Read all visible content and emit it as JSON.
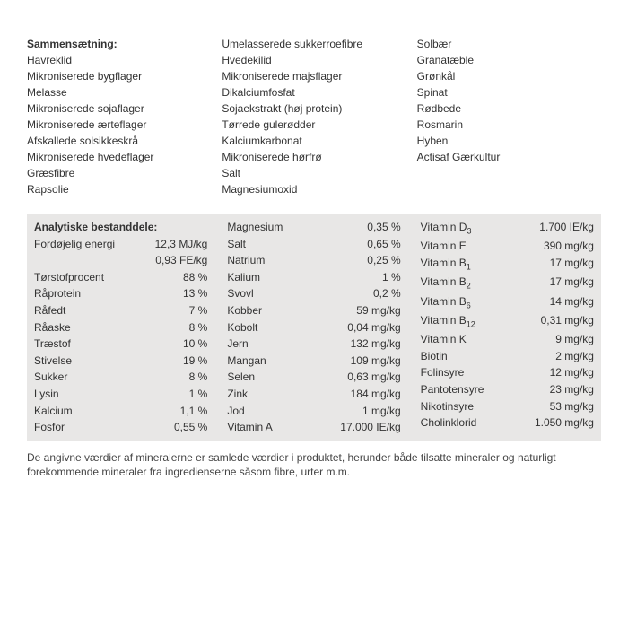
{
  "composition": {
    "heading": "Sammensætning:",
    "col1": [
      "Havreklid",
      "Mikroniserede bygflager",
      "Melasse",
      "Mikroniserede sojaflager",
      "Mikroniserede ærteflager",
      "Afskallede solsikkeskrå",
      "Mikroniserede hvedeflager",
      "Græsfibre",
      "Rapsolie"
    ],
    "col2": [
      "Umelasserede sukkerroefibre",
      "Hvedekilid",
      "Mikroniserede majsflager",
      "Dikalciumfosfat",
      "Sojaekstrakt (høj protein)",
      "Tørrede gulerødder",
      "Kalciumkarbonat",
      "Mikroniserede hørfrø",
      "Salt",
      "Magnesiumoxid"
    ],
    "col3": [
      "Solbær",
      "Granatæble",
      "Grønkål",
      "Spinat",
      "Rødbede",
      "Rosmarin",
      "Hyben",
      "Actisaf Gærkultur"
    ]
  },
  "analytic": {
    "heading": "Analytiske bestanddele:",
    "col1": [
      {
        "label": "Fordøjelig energi",
        "value": "12,3 MJ/kg"
      },
      {
        "label": "",
        "value": "0,93 FE/kg"
      },
      {
        "label": "Tørstofprocent",
        "value": "88 %"
      },
      {
        "label": "Råprotein",
        "value": "13 %"
      },
      {
        "label": "Råfedt",
        "value": "7 %"
      },
      {
        "label": "Råaske",
        "value": "8 %"
      },
      {
        "label": "Træstof",
        "value": "10 %"
      },
      {
        "label": "Stivelse",
        "value": "19 %"
      },
      {
        "label": "Sukker",
        "value": "8 %"
      },
      {
        "label": "Lysin",
        "value": "1 %"
      },
      {
        "label": "Kalcium",
        "value": "1,1 %"
      },
      {
        "label": "Fosfor",
        "value": "0,55 %"
      }
    ],
    "col2": [
      {
        "label": "Magnesium",
        "value": "0,35 %"
      },
      {
        "label": "Salt",
        "value": "0,65 %"
      },
      {
        "label": "Natrium",
        "value": "0,25 %"
      },
      {
        "label": "Kalium",
        "value": "1 %"
      },
      {
        "label": "Svovl",
        "value": "0,2 %"
      },
      {
        "label": "Kobber",
        "value": "59 mg/kg"
      },
      {
        "label": "Kobolt",
        "value": "0,04 mg/kg"
      },
      {
        "label": "Jern",
        "value": "132 mg/kg"
      },
      {
        "label": "Mangan",
        "value": "109 mg/kg"
      },
      {
        "label": "Selen",
        "value": "0,63 mg/kg"
      },
      {
        "label": "Zink",
        "value": "184 mg/kg"
      },
      {
        "label": "Jod",
        "value": "1 mg/kg"
      },
      {
        "label": "Vitamin A",
        "value": "17.000 IE/kg"
      }
    ],
    "col3": [
      {
        "label": "Vitamin D",
        "sub": "3",
        "value": "1.700 IE/kg"
      },
      {
        "label": "Vitamin E",
        "value": "390 mg/kg"
      },
      {
        "label": "Vitamin B",
        "sub": "1",
        "value": "17 mg/kg"
      },
      {
        "label": "Vitamin B",
        "sub": "2",
        "value": "17 mg/kg"
      },
      {
        "label": "Vitamin B",
        "sub": "6",
        "value": "14 mg/kg"
      },
      {
        "label": "Vitamin B",
        "sub": "12",
        "value": "0,31 mg/kg"
      },
      {
        "label": "Vitamin K",
        "value": "9 mg/kg"
      },
      {
        "label": "Biotin",
        "value": "2 mg/kg"
      },
      {
        "label": "Folinsyre",
        "value": "12 mg/kg"
      },
      {
        "label": "Pantotensyre",
        "value": "23 mg/kg"
      },
      {
        "label": "Nikotinsyre",
        "value": "53 mg/kg"
      },
      {
        "label": "Cholinklorid",
        "value": "1.050 mg/kg"
      }
    ]
  },
  "footnote": "De angivne værdier af mineralerne er samlede værdier i produktet, herunder både tilsatte mineraler og naturligt forekommende mineraler fra ingredienserne såsom fibre, urter m.m."
}
